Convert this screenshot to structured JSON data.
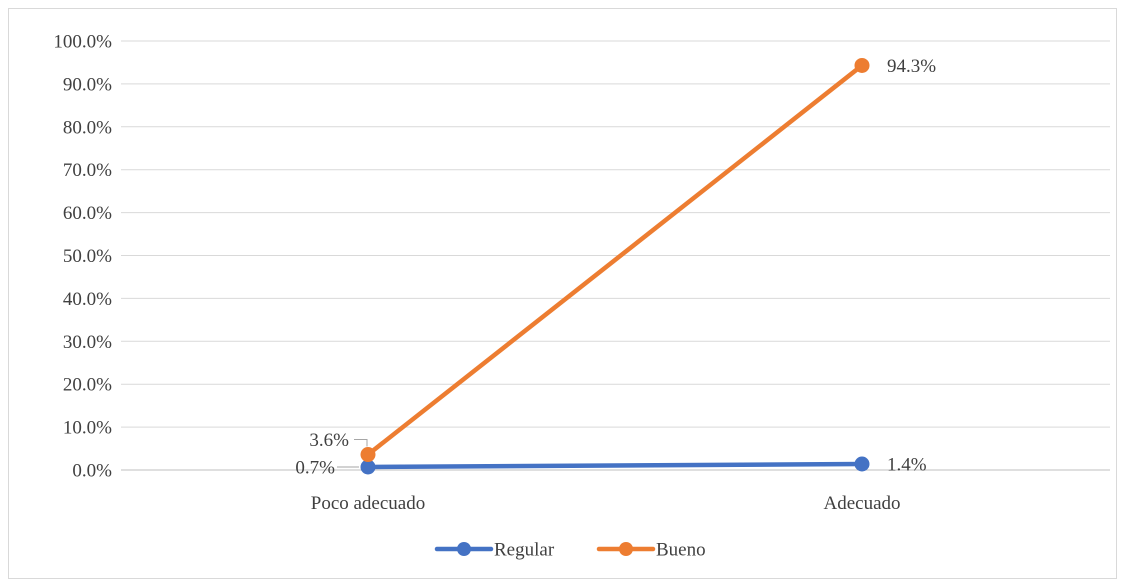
{
  "chart_data": {
    "type": "line",
    "title": "",
    "xlabel": "",
    "ylabel": "",
    "categories": [
      "Poco adecuado",
      "Adecuado"
    ],
    "ylim": [
      0,
      100
    ],
    "ytick_step": 10,
    "ytick_labels": [
      "0.0%",
      "10.0%",
      "20.0%",
      "30.0%",
      "40.0%",
      "50.0%",
      "60.0%",
      "70.0%",
      "80.0%",
      "90.0%",
      "100.0%"
    ],
    "grid": true,
    "legend_position": "bottom",
    "series": [
      {
        "name": "Regular",
        "color": "#4472C4",
        "values": [
          0.7,
          1.4
        ],
        "labels": [
          "0.7%",
          "1.4%"
        ]
      },
      {
        "name": "Bueno",
        "color": "#ED7D31",
        "values": [
          3.6,
          94.3
        ],
        "labels": [
          "3.6%",
          "94.3%"
        ]
      }
    ]
  }
}
